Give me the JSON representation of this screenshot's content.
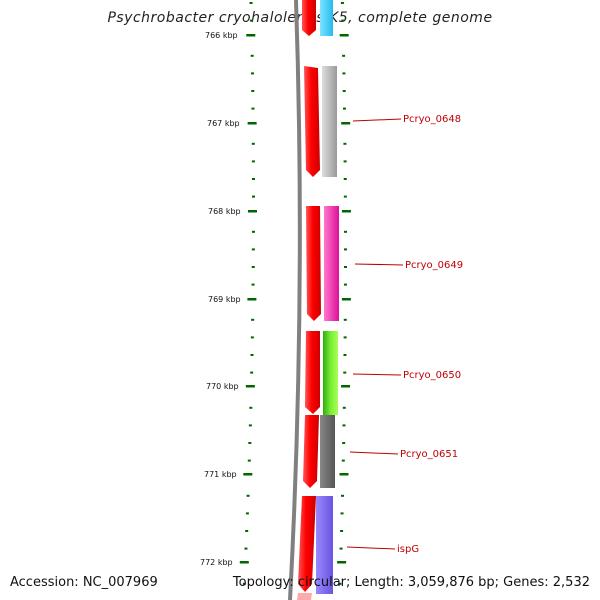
{
  "title": "Psychrobacter cryohalolentis K5, complete genome",
  "footer": {
    "accession": "Accession: NC_007969",
    "summary": "Topology: circular; Length: 3,059,876 bp; Genes: 2,532"
  },
  "ruler": {
    "labels": [
      "766 kbp",
      "767 kbp",
      "768 kbp",
      "769 kbp",
      "770 kbp",
      "771 kbp",
      "772 kbp"
    ]
  },
  "genes": [
    {
      "label": "",
      "color": "#33ccff"
    },
    {
      "label": "Pcryo_0648",
      "color": "#bbbbbb"
    },
    {
      "label": "Pcryo_0649",
      "color": "#ff33aa"
    },
    {
      "label": "Pcryo_0650",
      "color": "#66dd22"
    },
    {
      "label": "Pcryo_0651",
      "color": "#666666"
    },
    {
      "label": "ispG",
      "color": "#8877ee"
    }
  ],
  "cds_color": "#ff0000",
  "tick_color": "#006600"
}
